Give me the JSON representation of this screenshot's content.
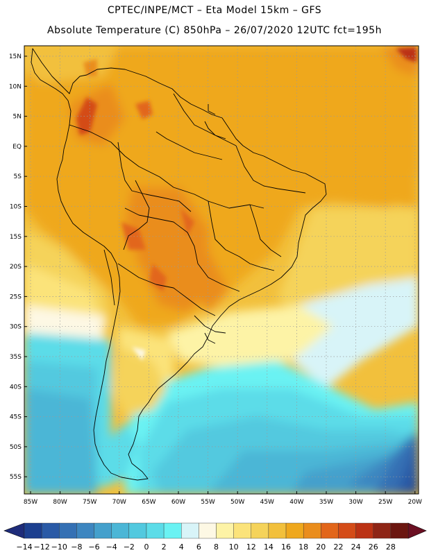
{
  "header": {
    "line1": "CPTEC/INPE/MCT –  Eta Model 15km – GFS",
    "line2": "Absolute Temperature (C) 850hPa – 26/07/2020 12UTC fct=195h"
  },
  "map": {
    "region": "South America",
    "lat_labels": [
      "15N",
      "10N",
      "5N",
      "EQ",
      "5S",
      "10S",
      "15S",
      "20S",
      "25S",
      "30S",
      "35S",
      "40S",
      "45S",
      "50S",
      "55S"
    ],
    "lon_labels": [
      "85W",
      "80W",
      "75W",
      "70W",
      "65W",
      "60W",
      "55W",
      "50W",
      "45W",
      "40W",
      "35W",
      "30W",
      "25W",
      "20W"
    ]
  },
  "colorbar": {
    "labels": [
      "-14",
      "-12",
      "-10",
      "-8",
      "-6",
      "-4",
      "-2",
      "0",
      "2",
      "4",
      "6",
      "8",
      "10",
      "12",
      "14",
      "16",
      "18",
      "20",
      "22",
      "24",
      "26",
      "28"
    ],
    "colors": [
      "#1c3f8f",
      "#2a5aa6",
      "#3470b4",
      "#3d86c0",
      "#44a0cc",
      "#4bb6d6",
      "#52c9df",
      "#5cdce8",
      "#6af2f3",
      "#d8f4f8",
      "#fdf8e4",
      "#fdf3a6",
      "#fbe37a",
      "#f5d35a",
      "#f2c03c",
      "#efa81d",
      "#ea8d1c",
      "#e2661a",
      "#d44c18",
      "#bb3214",
      "#8e2516",
      "#6b1610"
    ],
    "min_arrow_color": "#1e2c7a",
    "max_arrow_color": "#6b0f22"
  }
}
